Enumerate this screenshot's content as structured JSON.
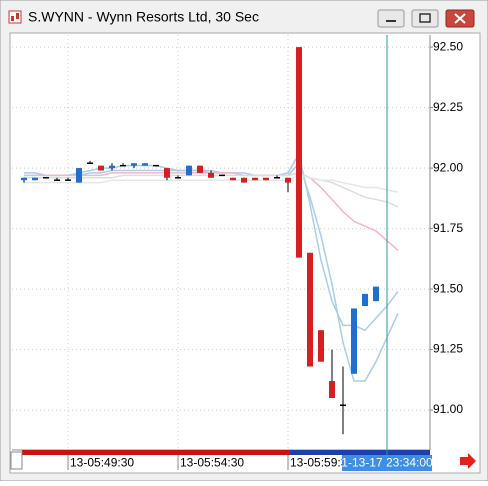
{
  "window": {
    "title": "S.WYNN - Wynn Resorts Ltd, 30 Sec"
  },
  "chart_data": {
    "type": "candlestick",
    "categories": [
      null,
      null,
      null,
      null,
      "13-05:49:30",
      null,
      null,
      null,
      null,
      null,
      null,
      null,
      null,
      null,
      "13-05:54:30",
      null,
      null,
      null,
      null,
      null,
      null,
      null,
      null,
      null,
      "13-05:59:30",
      null,
      null,
      null,
      null,
      null,
      null,
      null,
      null,
      null,
      null
    ],
    "open": [
      91.95,
      91.95,
      91.96,
      91.95,
      91.95,
      91.94,
      92.02,
      92.01,
      92.0,
      92.01,
      92.01,
      92.01,
      92.01,
      92.0,
      91.96,
      91.97,
      92.01,
      91.98,
      91.97,
      91.96,
      91.96,
      91.96,
      91.96,
      91.96,
      91.96,
      92.5,
      91.65,
      91.33,
      91.12,
      91.02,
      91.15,
      91.43,
      91.45,
      null,
      null
    ],
    "high": [
      91.96,
      91.96,
      91.96,
      91.96,
      91.96,
      92.0,
      92.03,
      92.01,
      92.02,
      92.02,
      92.02,
      92.02,
      92.01,
      92.0,
      91.97,
      92.01,
      92.01,
      91.99,
      91.97,
      91.96,
      91.96,
      91.96,
      91.96,
      91.97,
      91.96,
      92.5,
      91.65,
      91.33,
      91.25,
      91.18,
      91.42,
      91.48,
      91.51,
      null,
      null
    ],
    "low": [
      91.94,
      91.95,
      91.96,
      91.95,
      91.95,
      91.94,
      92.02,
      91.99,
      91.99,
      92.01,
      92.0,
      92.01,
      92.01,
      91.95,
      91.96,
      91.97,
      91.98,
      91.96,
      91.97,
      91.95,
      91.94,
      91.95,
      91.95,
      91.96,
      91.9,
      91.63,
      91.18,
      91.2,
      91.05,
      90.9,
      91.15,
      91.43,
      91.45,
      null,
      null
    ],
    "close": [
      91.96,
      91.96,
      91.96,
      91.95,
      91.95,
      92.0,
      92.02,
      91.99,
      92.01,
      92.01,
      92.02,
      92.02,
      92.01,
      91.96,
      91.96,
      92.01,
      91.98,
      91.96,
      91.97,
      91.95,
      91.94,
      91.95,
      91.95,
      91.96,
      91.94,
      91.63,
      91.18,
      91.2,
      91.05,
      91.02,
      91.42,
      91.48,
      91.51,
      null,
      null
    ],
    "up_color": "#1f6fd0",
    "down_color": "#d42020",
    "flat_color": "#000000",
    "overlays": [
      {
        "color": "#a9cdea",
        "values": [
          91.98,
          91.98,
          91.97,
          91.97,
          91.97,
          91.98,
          91.99,
          92.0,
          92.0,
          92.01,
          92.01,
          92.01,
          92.01,
          92.0,
          91.99,
          91.99,
          91.99,
          91.99,
          91.98,
          91.98,
          91.97,
          91.97,
          91.97,
          91.97,
          91.98,
          92.06,
          91.85,
          91.62,
          91.45,
          91.35,
          91.35,
          91.33,
          91.38,
          91.43,
          91.49
        ]
      },
      {
        "color": "#a9cdea",
        "values": [
          91.97,
          91.97,
          91.97,
          91.97,
          91.97,
          91.97,
          91.98,
          91.98,
          91.99,
          91.99,
          91.99,
          91.99,
          91.99,
          91.99,
          91.99,
          91.99,
          91.99,
          91.98,
          91.98,
          91.98,
          91.98,
          91.97,
          91.97,
          91.97,
          91.97,
          92.02,
          91.88,
          91.72,
          91.52,
          91.28,
          91.12,
          91.12,
          91.2,
          91.3,
          91.4
        ]
      },
      {
        "color": "#f0b6cb",
        "values": [
          91.97,
          91.97,
          91.97,
          91.97,
          91.97,
          91.97,
          91.97,
          91.97,
          91.98,
          91.98,
          91.98,
          91.98,
          91.98,
          91.98,
          91.98,
          91.98,
          91.98,
          91.98,
          91.98,
          91.98,
          91.97,
          91.97,
          91.97,
          91.97,
          91.97,
          91.98,
          91.96,
          91.92,
          91.87,
          91.82,
          91.78,
          91.76,
          91.74,
          91.7,
          91.66
        ]
      },
      {
        "color": "#dddddd",
        "values": [
          91.96,
          91.96,
          91.96,
          91.96,
          91.96,
          91.96,
          91.96,
          91.96,
          91.96,
          91.97,
          91.97,
          91.97,
          91.97,
          91.97,
          91.97,
          91.97,
          91.97,
          91.97,
          91.97,
          91.97,
          91.97,
          91.97,
          91.97,
          91.97,
          91.97,
          91.98,
          91.96,
          91.95,
          91.94,
          91.92,
          91.9,
          91.88,
          91.87,
          91.86,
          91.84
        ]
      },
      {
        "color": "#e6e6e6",
        "values": [
          91.94,
          91.94,
          91.94,
          91.94,
          91.94,
          91.94,
          91.94,
          91.94,
          91.95,
          91.95,
          91.95,
          91.95,
          91.95,
          91.95,
          91.95,
          91.95,
          91.95,
          91.95,
          91.95,
          91.95,
          91.95,
          91.95,
          91.95,
          91.95,
          91.95,
          91.97,
          91.96,
          91.95,
          91.95,
          91.94,
          91.93,
          91.92,
          91.92,
          91.91,
          91.9
        ]
      }
    ],
    "ylim": [
      90.835,
      92.55
    ],
    "yticks": [
      {
        "value": 92.5,
        "label": "92.50"
      },
      92.25,
      {
        "value": 92.0,
        "label": "92.00"
      },
      91.75,
      {
        "value": 91.5,
        "label": "91.50"
      },
      91.25,
      {
        "value": 91.0,
        "label": "91.00"
      }
    ],
    "grid": true,
    "cursor_label": "1-13-17 23:34:00"
  }
}
